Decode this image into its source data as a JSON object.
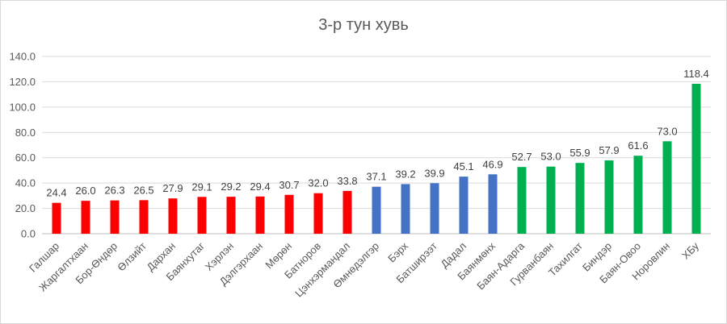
{
  "chart_data": {
    "type": "bar",
    "title": "3-р тун хувь",
    "xlabel": "",
    "ylabel": "",
    "ylim": [
      0,
      140
    ],
    "yticks": [
      "0.0",
      "20.0",
      "40.0",
      "60.0",
      "80.0",
      "100.0",
      "120.0",
      "140.0"
    ],
    "grid": true,
    "legend": "none",
    "categories": [
      "Галшар",
      "Жаргалтхаан",
      "Бор-Өндөр",
      "Өлзийт",
      "Дархан",
      "Баянхутаг",
      "Хэрлэн",
      "Дэлгэрхаан",
      "Мөрөн",
      "Батноров",
      "Цэнхэрмандал",
      "Өмнөдэлгэр",
      "Бэрх",
      "Батширээт",
      "Дадал",
      "Баянмөнх",
      "Баян-Адарга",
      "Гурванбаян",
      "Тахилгат",
      "Биндэр",
      "Баян-Овоо",
      "Норовлин",
      "ХБу"
    ],
    "values": [
      24.4,
      26.0,
      26.3,
      26.5,
      27.9,
      29.1,
      29.2,
      29.4,
      30.7,
      32.0,
      33.8,
      37.1,
      39.2,
      39.9,
      45.1,
      46.9,
      52.7,
      53.0,
      55.9,
      57.9,
      61.6,
      73.0,
      118.4
    ],
    "labels": [
      "24.4",
      "26.0",
      "26.3",
      "26.5",
      "27.9",
      "29.1",
      "29.2",
      "29.4",
      "30.7",
      "32.0",
      "33.8",
      "37.1",
      "39.2",
      "39.9",
      "45.1",
      "46.9",
      "52.7",
      "53.0",
      "55.9",
      "57.9",
      "61.6",
      "73.0",
      "118.4"
    ],
    "color_groups": [
      "red",
      "red",
      "red",
      "red",
      "red",
      "red",
      "red",
      "red",
      "red",
      "red",
      "red",
      "blue",
      "blue",
      "blue",
      "blue",
      "blue",
      "green",
      "green",
      "green",
      "green",
      "green",
      "green",
      "green"
    ],
    "colors": {
      "red": "#FF0000",
      "blue": "#4472C4",
      "green": "#00B050"
    }
  }
}
